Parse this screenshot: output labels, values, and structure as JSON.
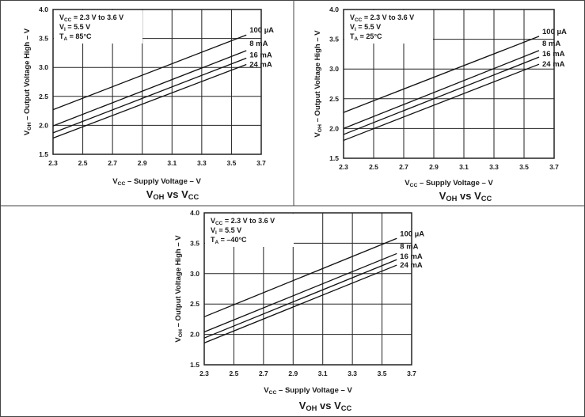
{
  "chart_data": [
    {
      "type": "line",
      "title": {
        "v": "V",
        "sub1": "OH",
        "mid": " vs V",
        "sub2": "CC"
      },
      "xlabel": {
        "v": "V",
        "sub": "CC",
        "rest": " – Supply Voltage – V"
      },
      "ylabel": {
        "v": "V",
        "sub": "OH",
        "rest": " – Output Voltage High – V"
      },
      "xlim": [
        2.3,
        3.7
      ],
      "ylim": [
        1.5,
        4.0
      ],
      "xticks": [
        "2.3",
        "2.5",
        "2.7",
        "2.9",
        "3.1",
        "3.3",
        "3.5",
        "3.7"
      ],
      "yticks": [
        "1.5",
        "2.0",
        "2.5",
        "3.0",
        "3.5",
        "4.0"
      ],
      "grid": true,
      "conditions": [
        {
          "v": "V",
          "sub": "CC",
          "rest": " = 2.3 V to 3.6 V"
        },
        {
          "v": "V",
          "sub": "I",
          "rest": " = 5.5 V"
        },
        {
          "v": "T",
          "sub": "A",
          "rest": " = 85°C"
        }
      ],
      "x": [
        2.3,
        3.6
      ],
      "series": [
        {
          "name": "100 µA",
          "values": [
            2.27,
            3.56
          ]
        },
        {
          "name": "8 mA",
          "values": [
            1.99,
            3.29
          ]
        },
        {
          "name": "16 mA",
          "values": [
            1.87,
            3.16
          ]
        },
        {
          "name": "24 mA",
          "values": [
            1.78,
            3.05
          ]
        }
      ]
    },
    {
      "type": "line",
      "title": {
        "v": "V",
        "sub1": "OH",
        "mid": " vs V",
        "sub2": "CC"
      },
      "xlabel": {
        "v": "V",
        "sub": "CC",
        "rest": " – Supply Voltage – V"
      },
      "ylabel": {
        "v": "V",
        "sub": "OH",
        "rest": " – Output Voltage High – V"
      },
      "xlim": [
        2.3,
        3.7
      ],
      "ylim": [
        1.5,
        4.0
      ],
      "xticks": [
        "2.3",
        "2.5",
        "2.7",
        "2.9",
        "3.1",
        "3.3",
        "3.5",
        "3.7"
      ],
      "yticks": [
        "1.5",
        "2.0",
        "2.5",
        "3.0",
        "3.5",
        "4.0"
      ],
      "grid": true,
      "conditions": [
        {
          "v": "V",
          "sub": "CC",
          "rest": " = 2.3 V to 3.6 V"
        },
        {
          "v": "V",
          "sub": "I",
          "rest": " = 5.5 V"
        },
        {
          "v": "T",
          "sub": "A",
          "rest": " = 25°C"
        }
      ],
      "x": [
        2.3,
        3.6
      ],
      "series": [
        {
          "name": "100 µA",
          "values": [
            2.27,
            3.55
          ]
        },
        {
          "name": "8 mA",
          "values": [
            2.0,
            3.31
          ]
        },
        {
          "name": "16 mA",
          "values": [
            1.9,
            3.2
          ]
        },
        {
          "name": "24 mA",
          "values": [
            1.8,
            3.08
          ]
        }
      ]
    },
    {
      "type": "line",
      "title": {
        "v": "V",
        "sub1": "OH",
        "mid": " vs V",
        "sub2": "CC"
      },
      "xlabel": {
        "v": "V",
        "sub": "CC",
        "rest": " – Supply Voltage – V"
      },
      "ylabel": {
        "v": "V",
        "sub": "OH",
        "rest": " – Output Voltage High – V"
      },
      "xlim": [
        2.3,
        3.7
      ],
      "ylim": [
        1.5,
        4.0
      ],
      "xticks": [
        "2.3",
        "2.5",
        "2.7",
        "2.9",
        "3.1",
        "3.3",
        "3.5",
        "3.7"
      ],
      "yticks": [
        "1.5",
        "2.0",
        "2.5",
        "3.0",
        "3.5",
        "4.0"
      ],
      "grid": true,
      "conditions": [
        {
          "v": "V",
          "sub": "CC",
          "rest": " = 2.3 V to 3.6 V"
        },
        {
          "v": "V",
          "sub": "I",
          "rest": " = 5.5 V"
        },
        {
          "v": "T",
          "sub": "A",
          "rest": " = –40°C"
        }
      ],
      "x": [
        2.3,
        3.6
      ],
      "series": [
        {
          "name": "100 µA",
          "values": [
            2.29,
            3.58
          ]
        },
        {
          "name": "8 mA",
          "values": [
            2.04,
            3.33
          ]
        },
        {
          "name": "16 mA",
          "values": [
            1.94,
            3.23
          ]
        },
        {
          "name": "24 mA",
          "values": [
            1.86,
            3.14
          ]
        }
      ]
    }
  ]
}
